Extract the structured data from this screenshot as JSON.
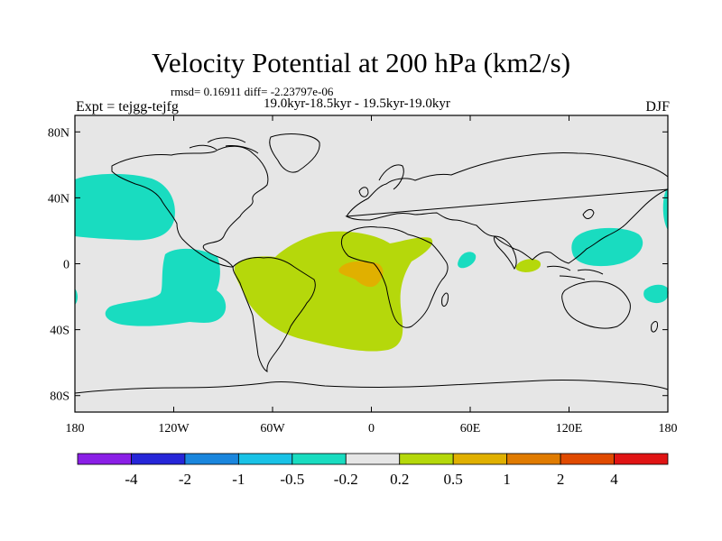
{
  "chart_data": {
    "type": "contour-map",
    "title": "Velocity Potential at 200 hPa (km2/s)",
    "stats_text": "rmsd= 0.16911 diff= -2.23797e-06",
    "left_label": "Expt = tejgg-tejfg",
    "center_label": "19.0kyr-18.5kyr - 19.5kyr-19.0kyr",
    "right_label": "DJF",
    "x_ticks": [
      "180",
      "120W",
      "60W",
      "0",
      "60E",
      "120E",
      "180"
    ],
    "y_ticks": [
      "80N",
      "40N",
      "0",
      "40S",
      "80S"
    ],
    "lon_range": [
      -180,
      180
    ],
    "lat_range": [
      -90,
      90
    ],
    "colorbar": {
      "labels": [
        "-4",
        "-2",
        "-1",
        "-0.5",
        "-0.2",
        "0.2",
        "0.5",
        "1",
        "2",
        "4"
      ],
      "colors": [
        "#8a1fe6",
        "#2626d8",
        "#1a86dd",
        "#19c2e6",
        "#19dcc0",
        "#e6e6e6",
        "#b5d80b",
        "#e0b000",
        "#e07b00",
        "#e04a00",
        "#e01414"
      ]
    },
    "regions": [
      {
        "name": "negative-north-pacific",
        "level": "-0.5 to -0.2",
        "color": "#19dcc0"
      },
      {
        "name": "negative-south-pacific",
        "level": "-0.5 to -0.2",
        "color": "#19dcc0"
      },
      {
        "name": "negative-west-pacific",
        "level": "-0.5 to -0.2",
        "color": "#19dcc0"
      },
      {
        "name": "negative-east-africa",
        "level": "-0.5 to -0.2",
        "color": "#19dcc0"
      },
      {
        "name": "positive-atlantic-south-america",
        "level": "0.2 to 0.5",
        "color": "#b5d80b"
      },
      {
        "name": "positive-central-atlantic-core",
        "level": "0.5 to 1",
        "color": "#e0b000"
      },
      {
        "name": "positive-indian-ocean",
        "level": "0.2 to 0.5",
        "color": "#b5d80b"
      }
    ]
  }
}
